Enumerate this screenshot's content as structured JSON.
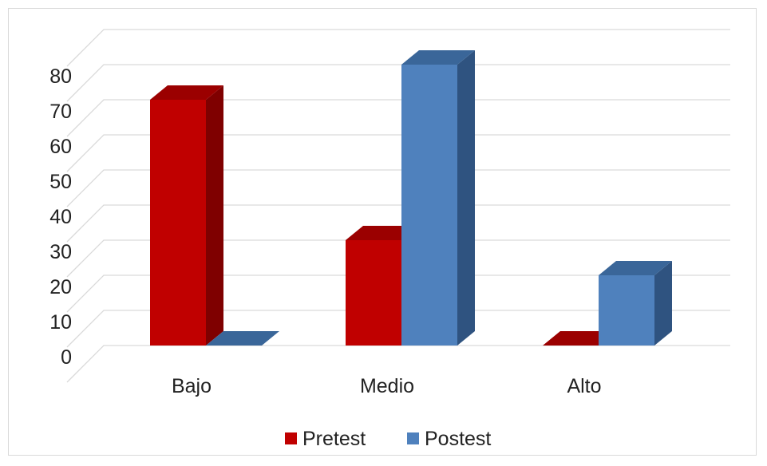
{
  "chart_data": {
    "type": "bar",
    "style": "3d-clustered-column",
    "categories": [
      "Bajo",
      "Medio",
      "Alto"
    ],
    "series": [
      {
        "name": "Pretest",
        "values": [
          70,
          30,
          0
        ],
        "color": "#c00000",
        "side_color": "#7f0000",
        "top_color": "#9b0000"
      },
      {
        "name": "Postest",
        "values": [
          0,
          80,
          20
        ],
        "color": "#4f81bd",
        "side_color": "#2f5380",
        "top_color": "#3a6699"
      }
    ],
    "y_ticks": [
      "0",
      "10",
      "20",
      "30",
      "40",
      "50",
      "60",
      "70",
      "80"
    ],
    "ylim": [
      0,
      90
    ],
    "grid": true,
    "legend_position": "bottom"
  }
}
